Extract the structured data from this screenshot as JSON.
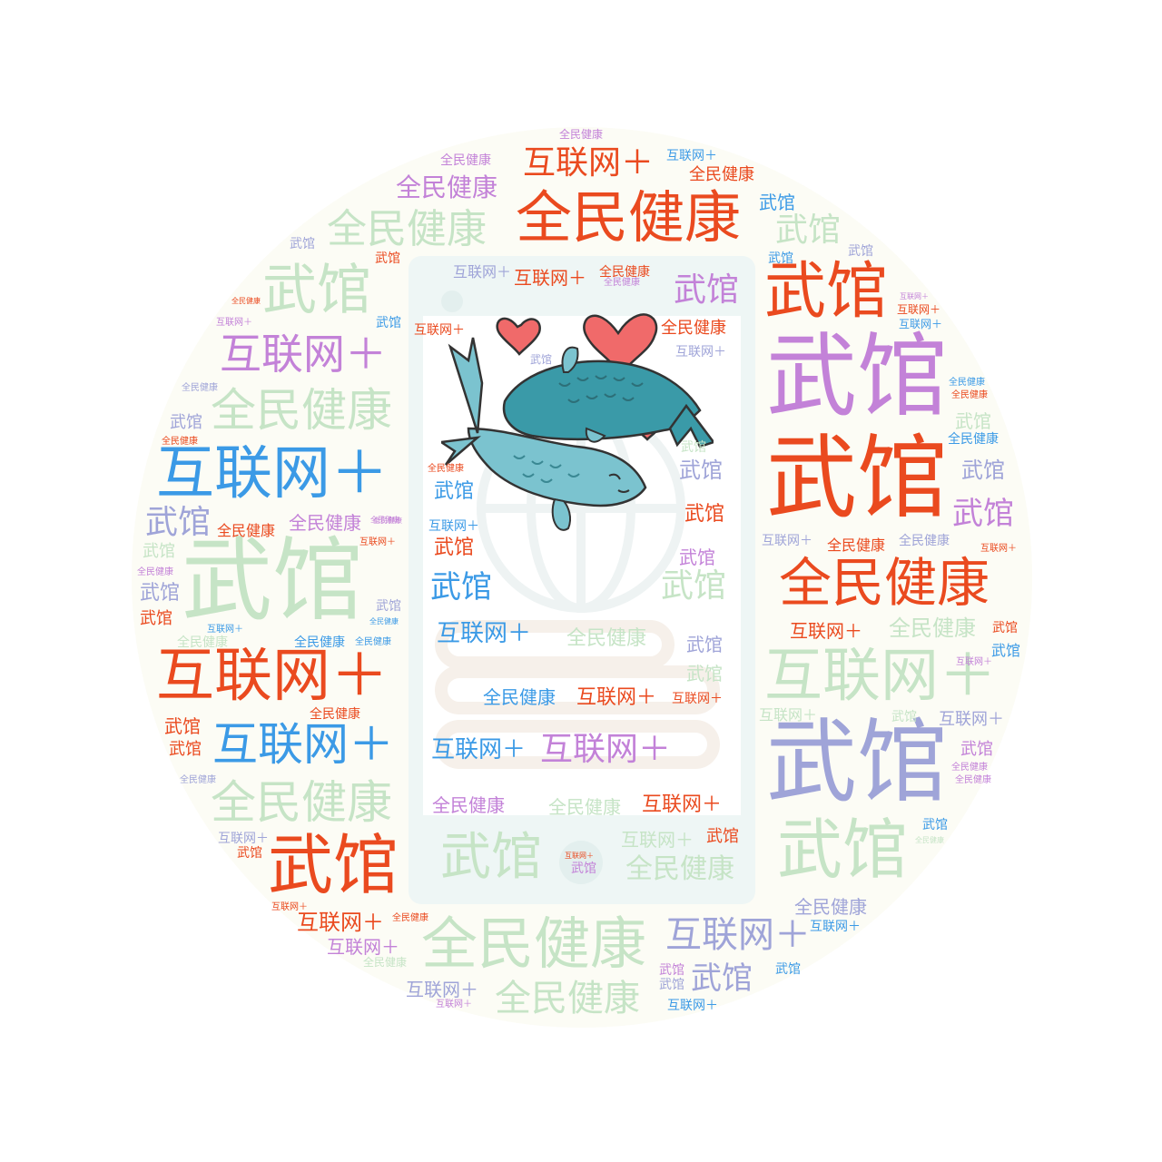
{
  "words": [
    "武馆",
    "全民健康",
    "互联网＋"
  ],
  "palette": {
    "red": "#ea4a1f",
    "blue": "#3b9ae6",
    "purple": "#c382d8",
    "lavender": "#9fa4d8",
    "green_pale": "#c6e4c6",
    "background_disc": "#fcfcf5",
    "teal_fish_dark": "#3a9aa8",
    "teal_fish_light": "#7bc3cf",
    "heart": "#f06a6a"
  },
  "illustration": {
    "icons": [
      "two-fish-icon",
      "heart-icon",
      "phone-icon",
      "globe-icon"
    ]
  }
}
